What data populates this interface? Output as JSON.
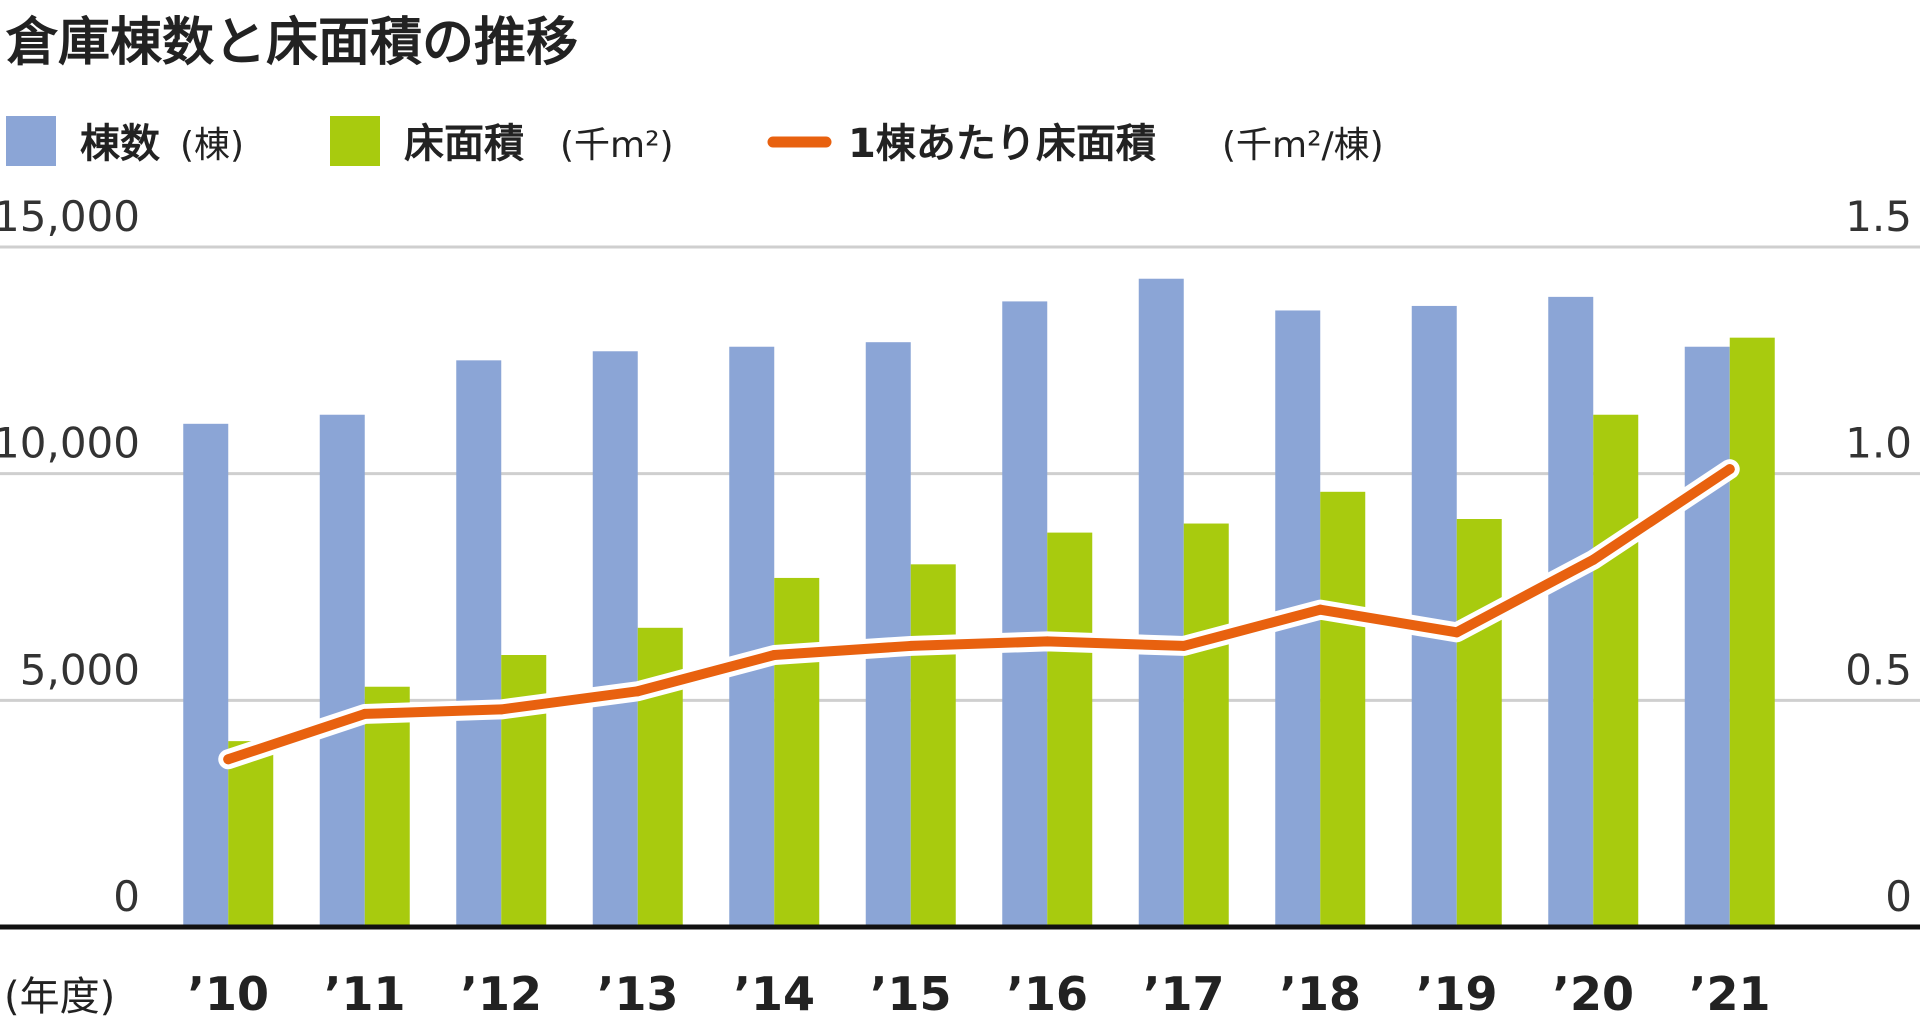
{
  "colors": {
    "bar_count": "#8BA5D6",
    "bar_area": "#A8CB0E",
    "line": "#E8610F",
    "grid": "#CFCFCF",
    "axis": "#111111"
  },
  "chart_data": {
    "type": "bar",
    "title": "倉庫棟数と床面積の推移",
    "categories": [
      "’10",
      "’11",
      "’12",
      "’13",
      "’14",
      "’15",
      "’16",
      "’17",
      "’18",
      "’19",
      "’20",
      "’21"
    ],
    "x_unit_label": "(年度)",
    "series": [
      {
        "name": "棟数",
        "unit": "(棟)",
        "axis": "left",
        "type": "bar",
        "values": [
          11100,
          11300,
          12500,
          12700,
          12800,
          12900,
          13800,
          14300,
          13600,
          13700,
          13900,
          12800
        ]
      },
      {
        "name": "床面積",
        "unit": "(千m²)",
        "axis": "left",
        "type": "bar",
        "values": [
          4100,
          5300,
          6000,
          6600,
          7700,
          8000,
          8700,
          8900,
          9600,
          9000,
          11300,
          13000
        ]
      },
      {
        "name": "1棟あたり床面積",
        "unit": "(千m²/棟)",
        "axis": "right",
        "type": "line",
        "values": [
          0.37,
          0.47,
          0.48,
          0.52,
          0.6,
          0.62,
          0.63,
          0.62,
          0.7,
          0.65,
          0.81,
          1.01
        ]
      }
    ],
    "ylim_left": [
      0,
      15000
    ],
    "ylim_right": [
      0,
      1.5
    ],
    "yticks_left": [
      "0",
      "5,000",
      "10,000",
      "15,000"
    ],
    "yticks_right": [
      "0",
      "0.5",
      "1.0",
      "1.5"
    ],
    "grid": true,
    "legend_position": "top"
  }
}
